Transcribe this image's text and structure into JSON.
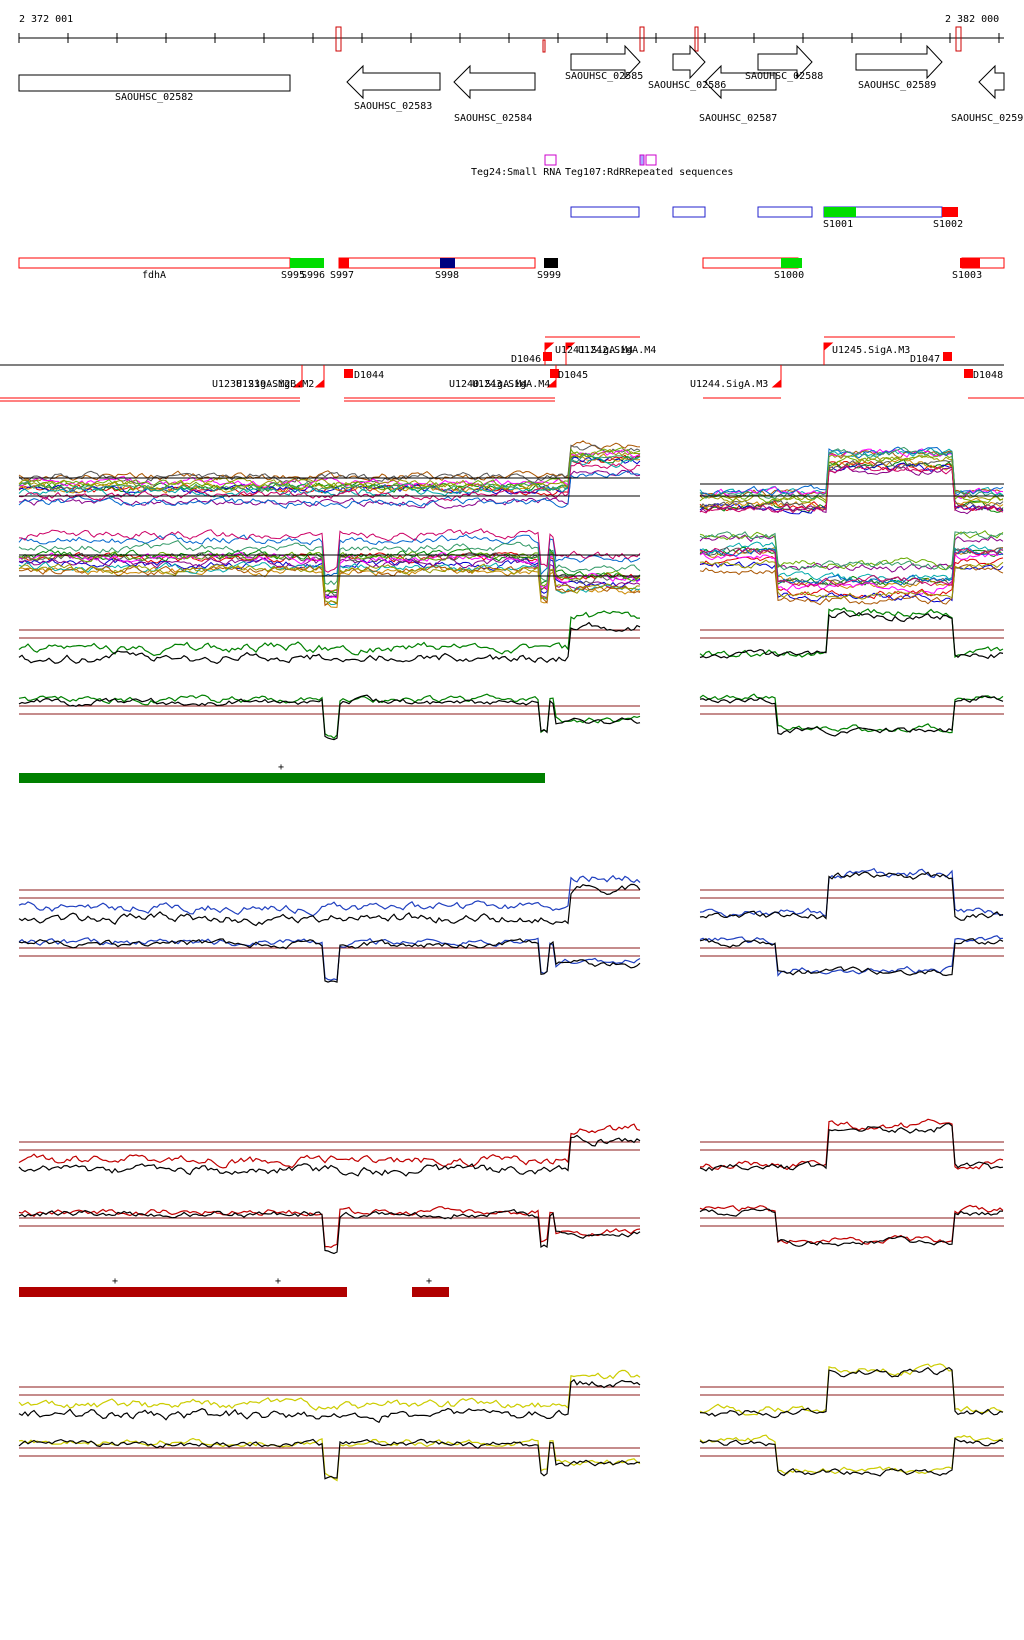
{
  "coords": {
    "start": "2 372 001",
    "end": "2 382 000"
  },
  "genes": [
    {
      "label": "SAOUHSC_02582",
      "dir": "none"
    },
    {
      "label": "SAOUHSC_02583",
      "dir": "left"
    },
    {
      "label": "SAOUHSC_02584",
      "dir": "left"
    },
    {
      "label": "SAOUHSC_02585",
      "dir": "right"
    },
    {
      "label": "SAOUHSC_02586",
      "dir": "right"
    },
    {
      "label": "SAOUHSC_02587",
      "dir": "left"
    },
    {
      "label": "SAOUHSC_02588",
      "dir": "right"
    },
    {
      "label": "SAOUHSC_02589",
      "dir": "right"
    },
    {
      "label": "SAOUHSC_0259",
      "dir": "left"
    }
  ],
  "misc_features": [
    {
      "label": "Teg24:Small RNA"
    },
    {
      "label": "Teg107:RdR"
    },
    {
      "label": "Repeated sequences"
    }
  ],
  "segments_upper": [
    {
      "label": "S1001"
    },
    {
      "label": "S1002"
    }
  ],
  "segments_lower": [
    {
      "label": "fdhA"
    },
    {
      "label": "S995"
    },
    {
      "label": "S996"
    },
    {
      "label": "S997"
    },
    {
      "label": "S998"
    },
    {
      "label": "S999"
    },
    {
      "label": "S1000"
    },
    {
      "label": "S1003"
    }
  ],
  "promoters_above": [
    {
      "label": "U1241.SigA.M4"
    },
    {
      "label": "U1242.SigA.M4"
    },
    {
      "label": "U1245.SigA.M3"
    },
    {
      "label": "D1046"
    },
    {
      "label": "D1047"
    }
  ],
  "promoters_below": [
    {
      "label": "U1238.SigA.M2"
    },
    {
      "label": "U1239.SigB.M2"
    },
    {
      "label": "U1240.SigA.M4"
    },
    {
      "label": "U1243.SigA.M4"
    },
    {
      "label": "U1244.SigA.M3"
    },
    {
      "label": "D1044"
    },
    {
      "label": "D1045"
    },
    {
      "label": "D1048"
    }
  ],
  "track_colors": {
    "green": "#008000",
    "blue": "#1f3fbf",
    "red": "#c00000",
    "yellow": "#cccc00",
    "ref": "#8b1a1a",
    "gene_box": "#ff0000",
    "segment_green": "#00dd00",
    "segment_red": "#ff0000"
  },
  "bands": [
    {
      "label": "+",
      "color": "green"
    },
    {
      "label": "+",
      "color": "red"
    },
    {
      "label": "+",
      "color": "red"
    },
    {
      "label": "+",
      "color": "red"
    }
  ]
}
